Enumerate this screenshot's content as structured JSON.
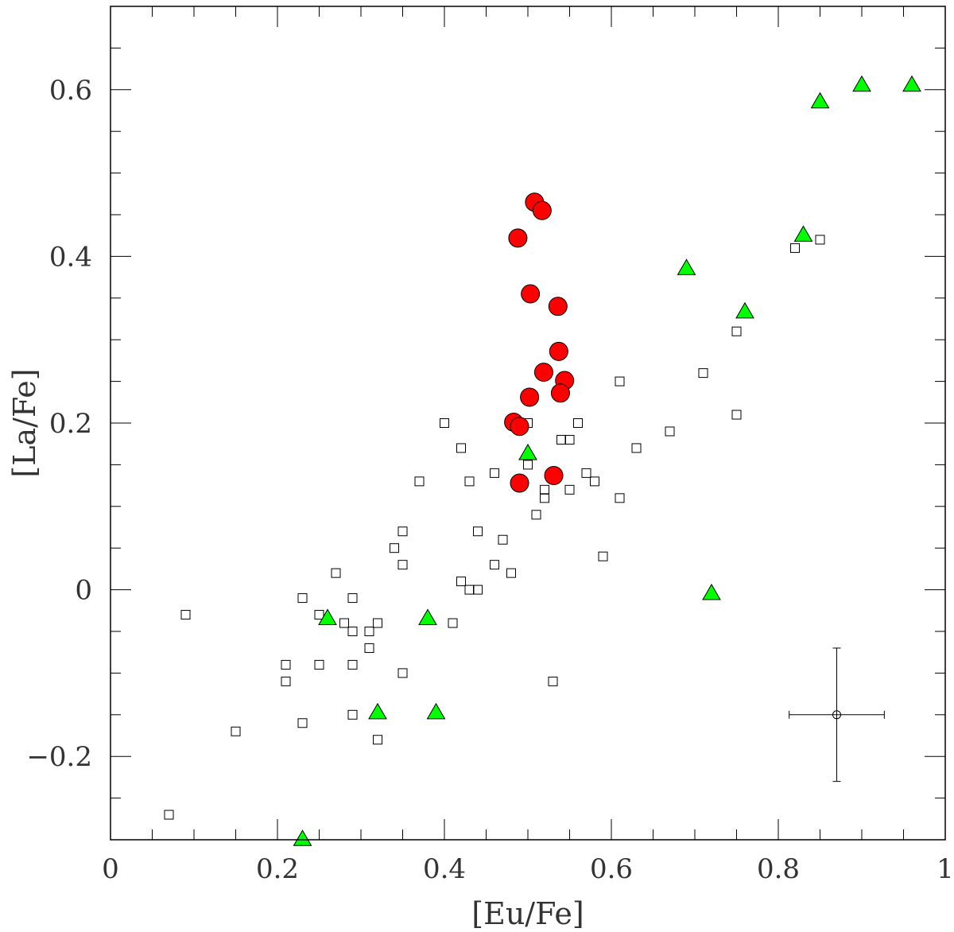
{
  "chart_data": {
    "type": "scatter",
    "xlabel": "[Eu/Fe]",
    "ylabel": "[La/Fe]",
    "xlim": [
      0,
      1
    ],
    "ylim": [
      -0.3,
      0.7
    ],
    "x_ticks": [
      "0",
      "0.2",
      "0.4",
      "0.6",
      "0.8",
      "1"
    ],
    "y_ticks": [
      "−0.2",
      "0",
      "0.2",
      "0.4",
      "0.6"
    ],
    "x_tick_values": [
      0,
      0.2,
      0.4,
      0.6,
      0.8,
      1
    ],
    "y_tick_values": [
      -0.2,
      0,
      0.2,
      0.4,
      0.6
    ],
    "series": [
      {
        "marker": "square-open",
        "color": "#000000",
        "points": [
          [
            0.07,
            -0.27
          ],
          [
            0.09,
            -0.03
          ],
          [
            0.15,
            -0.17
          ],
          [
            0.21,
            -0.09
          ],
          [
            0.21,
            -0.11
          ],
          [
            0.23,
            -0.01
          ],
          [
            0.23,
            -0.16
          ],
          [
            0.25,
            -0.03
          ],
          [
            0.25,
            -0.09
          ],
          [
            0.27,
            0.02
          ],
          [
            0.28,
            -0.04
          ],
          [
            0.29,
            -0.01
          ],
          [
            0.29,
            -0.05
          ],
          [
            0.29,
            -0.09
          ],
          [
            0.29,
            -0.15
          ],
          [
            0.31,
            -0.05
          ],
          [
            0.31,
            -0.07
          ],
          [
            0.32,
            -0.04
          ],
          [
            0.32,
            -0.18
          ],
          [
            0.34,
            0.05
          ],
          [
            0.35,
            0.07
          ],
          [
            0.35,
            0.03
          ],
          [
            0.35,
            -0.1
          ],
          [
            0.37,
            0.13
          ],
          [
            0.4,
            0.2
          ],
          [
            0.41,
            -0.04
          ],
          [
            0.42,
            0.17
          ],
          [
            0.42,
            0.01
          ],
          [
            0.43,
            0.13
          ],
          [
            0.43,
            0.0
          ],
          [
            0.44,
            0.07
          ],
          [
            0.44,
            0.0
          ],
          [
            0.46,
            0.14
          ],
          [
            0.46,
            0.03
          ],
          [
            0.47,
            0.06
          ],
          [
            0.48,
            0.02
          ],
          [
            0.49,
            0.2
          ],
          [
            0.5,
            0.2
          ],
          [
            0.5,
            0.15
          ],
          [
            0.51,
            0.09
          ],
          [
            0.52,
            0.12
          ],
          [
            0.52,
            0.11
          ],
          [
            0.53,
            -0.11
          ],
          [
            0.54,
            0.18
          ],
          [
            0.54,
            0.24
          ],
          [
            0.55,
            0.18
          ],
          [
            0.55,
            0.12
          ],
          [
            0.56,
            0.2
          ],
          [
            0.57,
            0.14
          ],
          [
            0.58,
            0.13
          ],
          [
            0.59,
            0.04
          ],
          [
            0.61,
            0.25
          ],
          [
            0.61,
            0.11
          ],
          [
            0.63,
            0.17
          ],
          [
            0.67,
            0.19
          ],
          [
            0.71,
            0.26
          ],
          [
            0.75,
            0.31
          ],
          [
            0.75,
            0.21
          ],
          [
            0.82,
            0.41
          ],
          [
            0.85,
            0.42
          ],
          [
            0.52,
            0.455
          ]
        ]
      },
      {
        "marker": "circle-filled",
        "color": "#ff0000",
        "points": [
          [
            0.508,
            0.465
          ],
          [
            0.517,
            0.455
          ],
          [
            0.488,
            0.422
          ],
          [
            0.503,
            0.355
          ],
          [
            0.536,
            0.34
          ],
          [
            0.537,
            0.286
          ],
          [
            0.519,
            0.261
          ],
          [
            0.544,
            0.251
          ],
          [
            0.539,
            0.236
          ],
          [
            0.502,
            0.231
          ],
          [
            0.483,
            0.201
          ],
          [
            0.49,
            0.196
          ],
          [
            0.531,
            0.137
          ],
          [
            0.49,
            0.128
          ]
        ]
      },
      {
        "marker": "triangle-filled",
        "color": "#00ff00",
        "points": [
          [
            0.23,
            -0.3
          ],
          [
            0.26,
            -0.035
          ],
          [
            0.32,
            -0.148
          ],
          [
            0.38,
            -0.035
          ],
          [
            0.39,
            -0.148
          ],
          [
            0.5,
            0.163
          ],
          [
            0.69,
            0.385
          ],
          [
            0.72,
            -0.005
          ],
          [
            0.76,
            0.333
          ],
          [
            0.83,
            0.425
          ],
          [
            0.85,
            0.585
          ],
          [
            0.9,
            0.605
          ],
          [
            0.96,
            0.605
          ]
        ]
      }
    ],
    "error_bar": {
      "x": 0.87,
      "y": -0.15,
      "x_err": 0.057,
      "y_err": 0.08
    }
  }
}
